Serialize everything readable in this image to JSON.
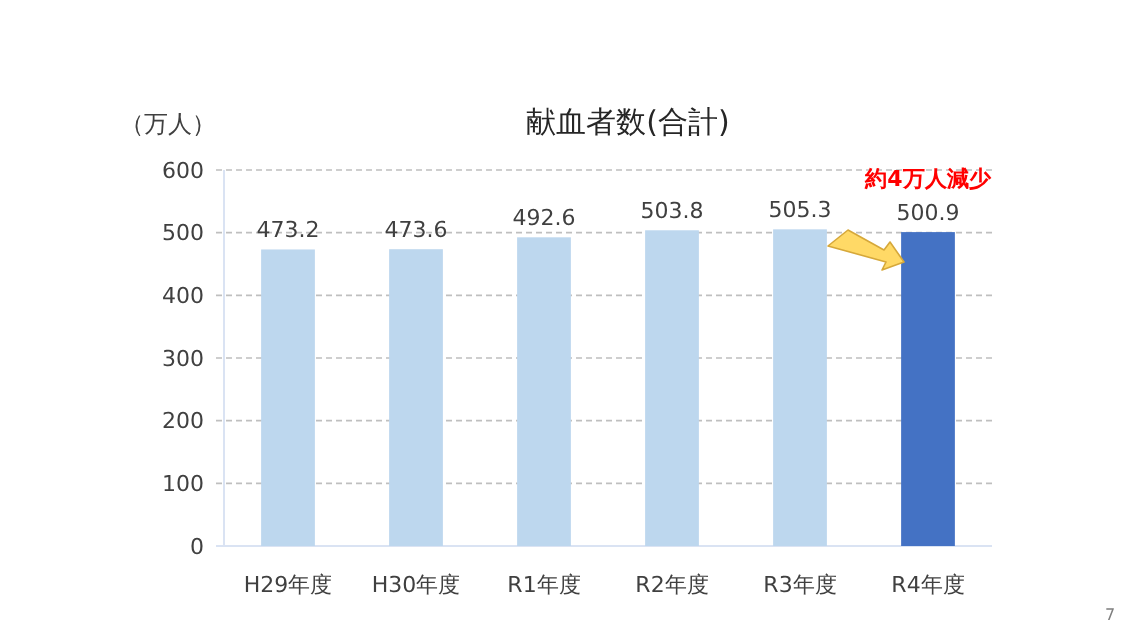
{
  "chart_data": {
    "type": "bar",
    "title": "献血者数(合計)",
    "ylabel": "（万人）",
    "categories": [
      "H29年度",
      "H30年度",
      "R1年度",
      "R2年度",
      "R3年度",
      "R4年度"
    ],
    "values": [
      473.2,
      473.6,
      492.6,
      503.8,
      505.3,
      500.9
    ],
    "colors": [
      "#bdd7ee",
      "#bdd7ee",
      "#bdd7ee",
      "#bdd7ee",
      "#bdd7ee",
      "#4472c4"
    ],
    "ylim": [
      0,
      600
    ],
    "yticks": [
      0,
      100,
      200,
      300,
      400,
      500,
      600
    ],
    "grid": "y",
    "data_labels": true,
    "annotations": [
      "約4万人減少",
      "7"
    ]
  }
}
